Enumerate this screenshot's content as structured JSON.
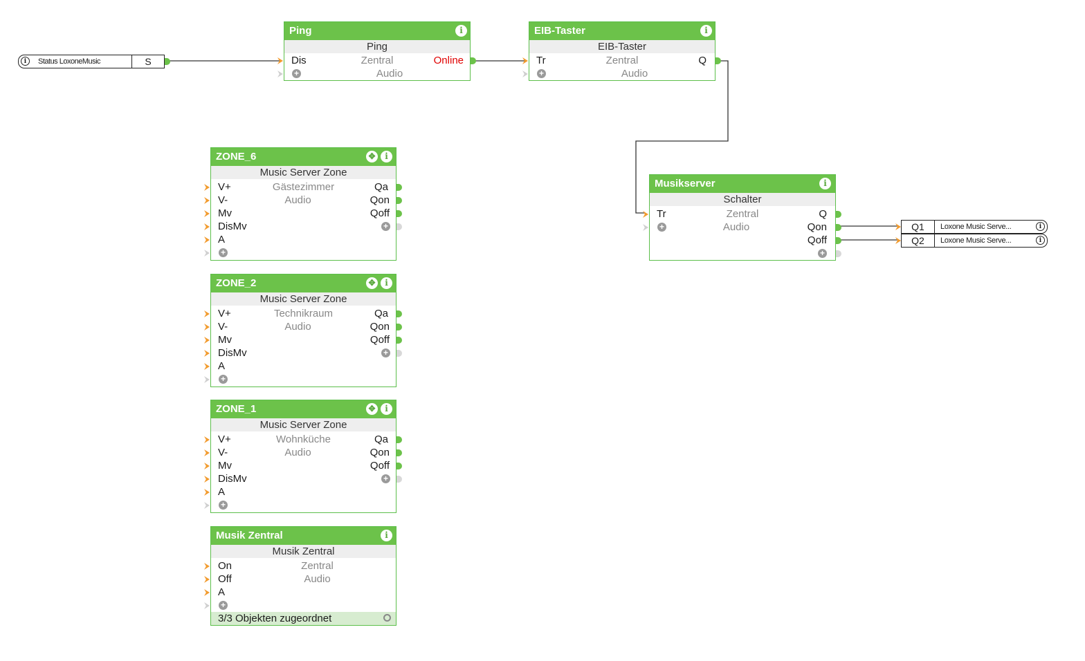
{
  "input_connector": {
    "label": "Status LoxoneMusic",
    "pin": "S"
  },
  "ping": {
    "title": "Ping",
    "type": "Ping",
    "in": "Dis",
    "room": "Zentral",
    "category": "Audio",
    "out": "Online"
  },
  "eib": {
    "title": "EIB-Taster",
    "type": "EIB-Taster",
    "in": "Tr",
    "room": "Zentral",
    "category": "Audio",
    "out": "Q"
  },
  "musikserver": {
    "title": "Musikserver",
    "type": "Schalter",
    "in": "Tr",
    "room": "Zentral",
    "category": "Audio",
    "outs": [
      "Q",
      "Qon",
      "Qoff"
    ]
  },
  "zones": [
    {
      "title": "ZONE_6",
      "type": "Music Server Zone",
      "room": "Gästezimmer",
      "category": "Audio",
      "ins": [
        "V+",
        "V-",
        "Mv",
        "DisMv",
        "A"
      ],
      "outs": [
        "Qa",
        "Qon",
        "Qoff"
      ]
    },
    {
      "title": "ZONE_2",
      "type": "Music Server Zone",
      "room": "Technikraum",
      "category": "Audio",
      "ins": [
        "V+",
        "V-",
        "Mv",
        "DisMv",
        "A"
      ],
      "outs": [
        "Qa",
        "Qon",
        "Qoff"
      ]
    },
    {
      "title": "ZONE_1",
      "type": "Music Server Zone",
      "room": "Wohnküche",
      "category": "Audio",
      "ins": [
        "V+",
        "V-",
        "Mv",
        "DisMv",
        "A"
      ],
      "outs": [
        "Qa",
        "Qon",
        "Qoff"
      ]
    }
  ],
  "musik_zentral": {
    "title": "Musik Zentral",
    "type": "Musik Zentral",
    "room": "Zentral",
    "category": "Audio",
    "ins": [
      "On",
      "Off",
      "A"
    ],
    "footer": "3/3 Objekten zugeordnet"
  },
  "outputs": [
    {
      "pin": "Q1",
      "label": "Loxone Music Serve..."
    },
    {
      "pin": "Q2",
      "label": "Loxone Music Serve..."
    }
  ],
  "info_icon": "i",
  "colors": {
    "header": "#6cc24a",
    "border": "#5cbf4a",
    "online": "#e00000",
    "input_pin": "#f29b2e"
  }
}
